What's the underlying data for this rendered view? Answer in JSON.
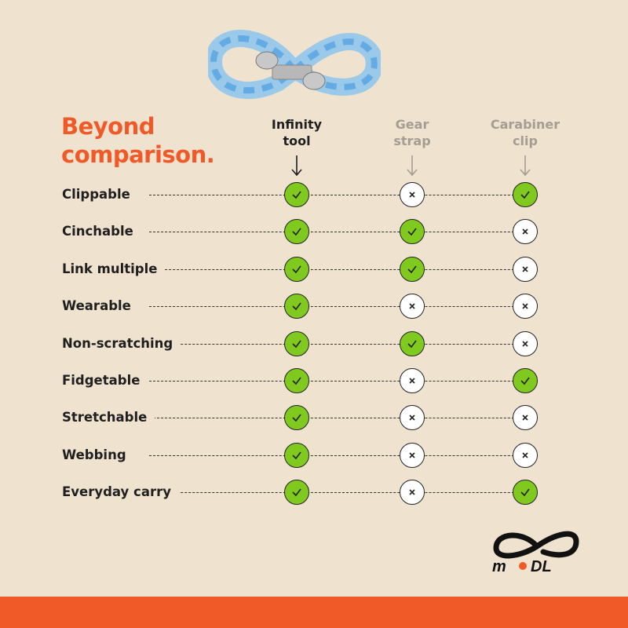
{
  "title": {
    "line1": "Beyond",
    "line2": "comparison."
  },
  "columns": [
    {
      "line1": "Infinity",
      "line2": "tool",
      "color": "#1f1f1f"
    },
    {
      "line1": "Gear",
      "line2": "strap",
      "color": "#a59d92"
    },
    {
      "line1": "Carabiner",
      "line2": "clip",
      "color": "#a59d92"
    }
  ],
  "rows": [
    {
      "label": "Clippable",
      "values": [
        true,
        false,
        true
      ]
    },
    {
      "label": "Cinchable",
      "values": [
        true,
        true,
        false
      ]
    },
    {
      "label": "Link multiple",
      "values": [
        true,
        true,
        false
      ]
    },
    {
      "label": "Wearable",
      "values": [
        true,
        false,
        false
      ]
    },
    {
      "label": "Non-scratching",
      "values": [
        true,
        true,
        false
      ]
    },
    {
      "label": "Fidgetable",
      "values": [
        true,
        false,
        true
      ]
    },
    {
      "label": "Stretchable",
      "values": [
        true,
        false,
        false
      ]
    },
    {
      "label": "Webbing",
      "values": [
        true,
        false,
        false
      ]
    },
    {
      "label": "Everyday carry",
      "values": [
        true,
        false,
        true
      ]
    }
  ],
  "icons": {
    "yes": "check-icon",
    "no": "x-icon"
  },
  "logo": {
    "text": "MODL"
  },
  "colors": {
    "accent": "#f05a28",
    "check": "#80c91f",
    "background": "#efe3d0"
  }
}
